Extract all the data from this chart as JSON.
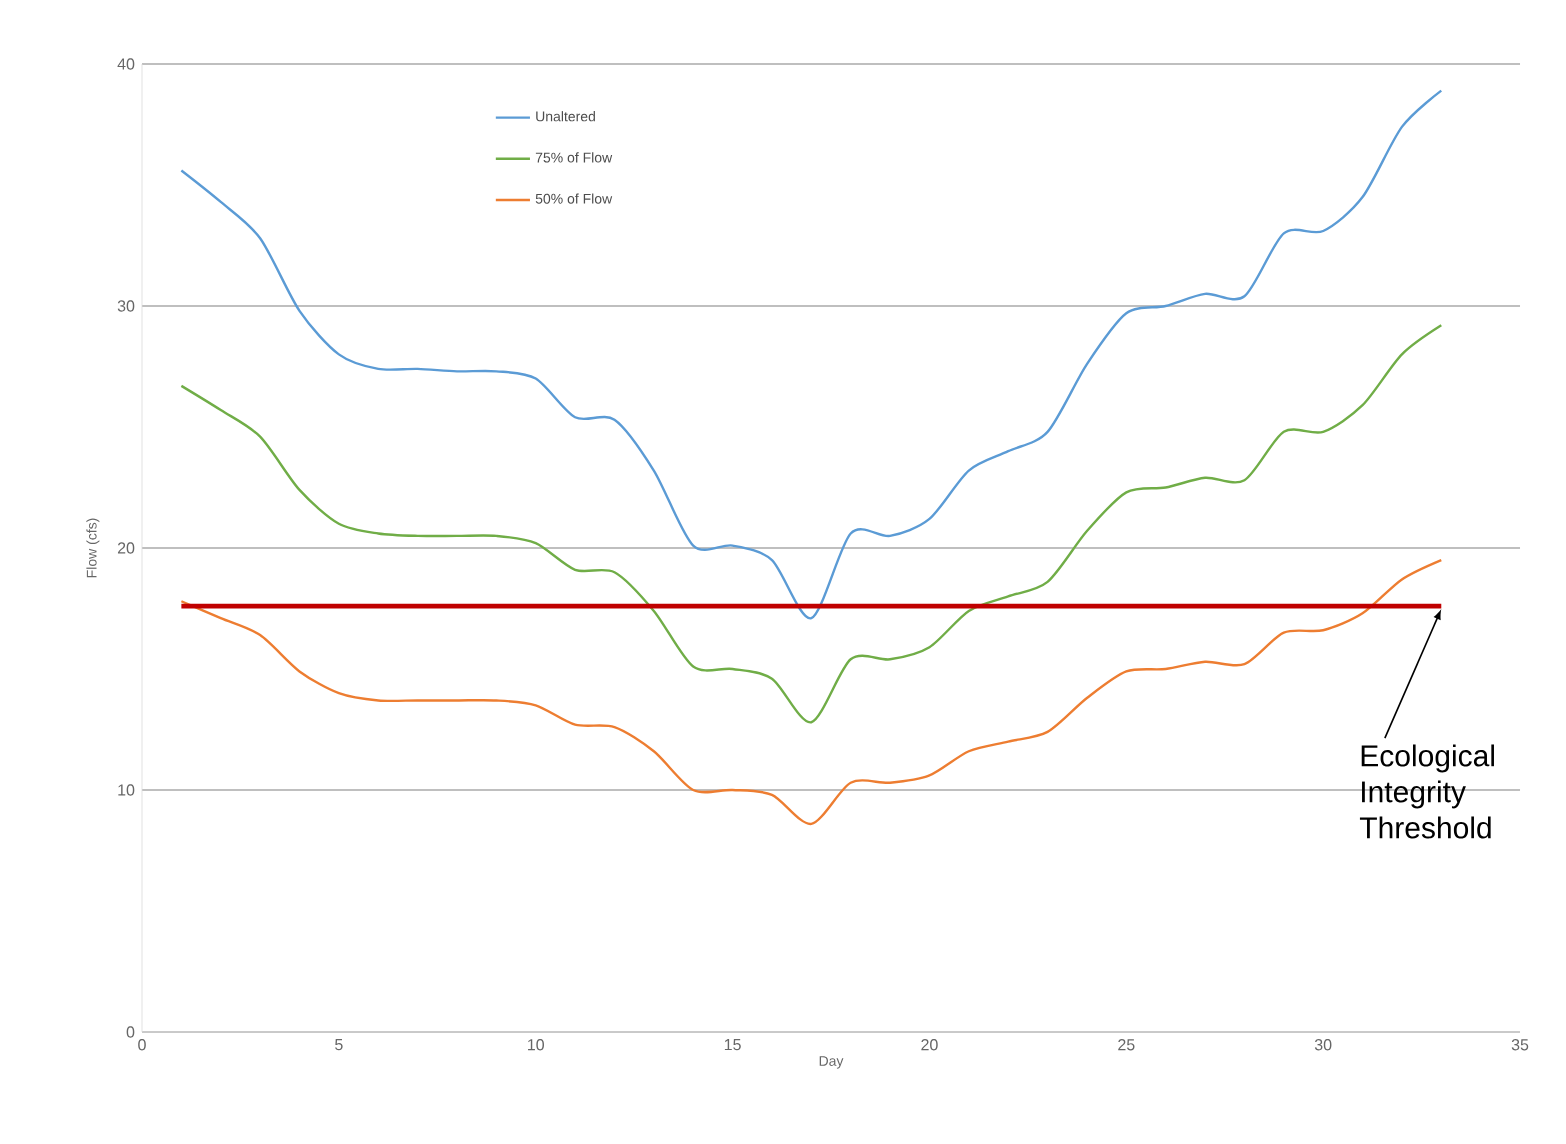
{
  "chart_data": {
    "type": "line",
    "xlabel": "Day",
    "ylabel": "Flow (cfs)",
    "x": [
      1,
      2,
      3,
      4,
      5,
      6,
      7,
      8,
      9,
      10,
      11,
      12,
      13,
      14,
      15,
      16,
      17,
      18,
      19,
      20,
      21,
      22,
      23,
      24,
      25,
      26,
      27,
      28,
      29,
      30,
      31,
      32,
      33
    ],
    "series": [
      {
        "name": "Unaltered",
        "color": "#5b9bd5",
        "values": [
          35.6,
          34.3,
          32.8,
          29.8,
          28.0,
          27.4,
          27.4,
          27.3,
          27.3,
          27.0,
          25.4,
          25.3,
          23.2,
          20.1,
          20.1,
          19.5,
          17.1,
          20.6,
          20.5,
          21.2,
          23.2,
          24.0,
          24.8,
          27.6,
          29.7,
          30.0,
          30.5,
          30.4,
          33.0,
          33.1,
          34.5,
          37.4,
          38.9
        ]
      },
      {
        "name": "75% of Flow",
        "color": "#70ad47",
        "values": [
          26.7,
          25.7,
          24.6,
          22.4,
          21.0,
          20.6,
          20.5,
          20.5,
          20.5,
          20.2,
          19.1,
          19.0,
          17.4,
          15.1,
          15.0,
          14.6,
          12.8,
          15.4,
          15.4,
          15.9,
          17.4,
          18.0,
          18.6,
          20.7,
          22.3,
          22.5,
          22.9,
          22.8,
          24.8,
          24.8,
          25.9,
          28.0,
          29.2
        ]
      },
      {
        "name": "50% of Flow",
        "color": "#ed7d31",
        "values": [
          17.8,
          17.1,
          16.4,
          14.9,
          14.0,
          13.7,
          13.7,
          13.7,
          13.7,
          13.5,
          12.7,
          12.6,
          11.6,
          10.0,
          10.0,
          9.8,
          8.6,
          10.3,
          10.3,
          10.6,
          11.6,
          12.0,
          12.4,
          13.8,
          14.9,
          15.0,
          15.3,
          15.2,
          16.5,
          16.6,
          17.3,
          18.7,
          19.5
        ]
      }
    ],
    "xlim": [
      0,
      35
    ],
    "xticks": [
      0,
      5,
      10,
      15,
      20,
      25,
      30,
      35
    ],
    "ylim": [
      0,
      40
    ],
    "yticks": [
      0,
      10,
      20,
      30,
      40
    ],
    "grid": "y",
    "legend": "top",
    "marker": "none",
    "line_style": "solid",
    "ref_lines": [
      {
        "axis": "y",
        "value": 17.6,
        "label": "Ecological Integrity Threshold",
        "color": "#c00000"
      }
    ]
  }
}
